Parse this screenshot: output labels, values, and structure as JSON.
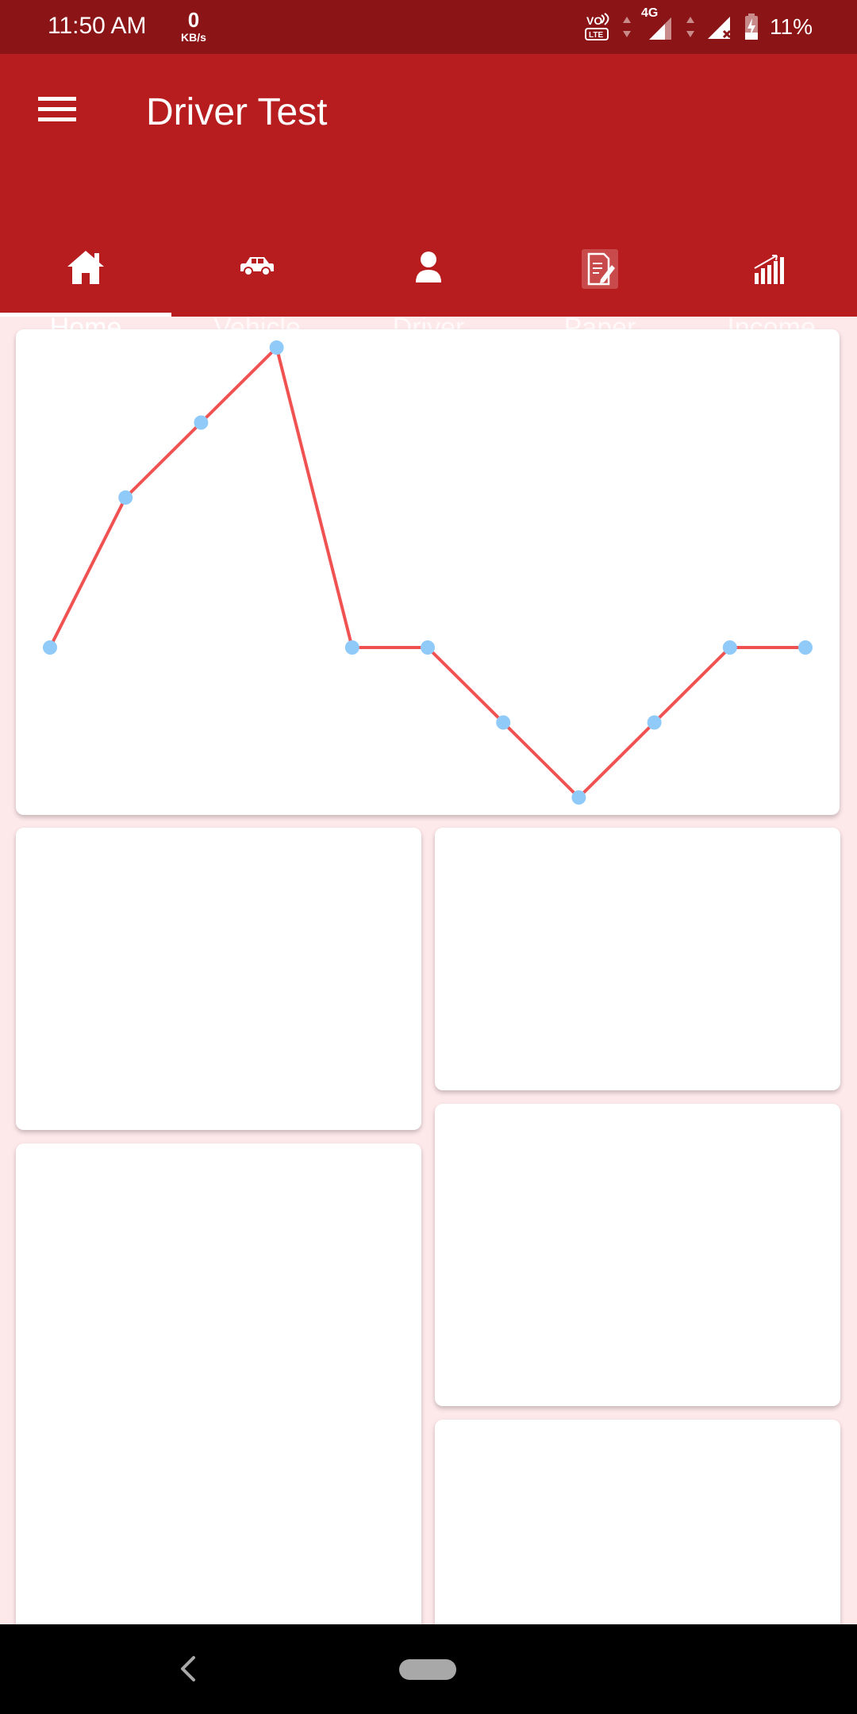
{
  "status_bar": {
    "time": "11:50 AM",
    "speed_value": "0",
    "speed_unit": "KB/s",
    "network": "4G",
    "battery_percent": "11%"
  },
  "app_bar": {
    "title": "Driver Test"
  },
  "tabs": [
    {
      "label": "Home",
      "icon": "home-icon",
      "active": true
    },
    {
      "label": "Vehicle",
      "icon": "car-icon",
      "active": false
    },
    {
      "label": "Driver",
      "icon": "person-icon",
      "active": false
    },
    {
      "label": "Paper",
      "icon": "document-edit-icon",
      "active": false
    },
    {
      "label": "Income",
      "icon": "bar-chart-icon",
      "active": false
    }
  ],
  "colors": {
    "status_bar": "#8b1416",
    "app_bar": "#b71c1e",
    "background": "#fde8ea",
    "line": "#f05252",
    "point": "#90caf9"
  },
  "chart_data": {
    "type": "line",
    "x": [
      1,
      2,
      3,
      4,
      5,
      6,
      7,
      8,
      9,
      10,
      11
    ],
    "series": [
      {
        "values": [
          4,
          6,
          7,
          8,
          4,
          4,
          3,
          2,
          3,
          4,
          4
        ]
      }
    ],
    "ylim": [
      2,
      8
    ],
    "grid": false,
    "legend": false
  }
}
